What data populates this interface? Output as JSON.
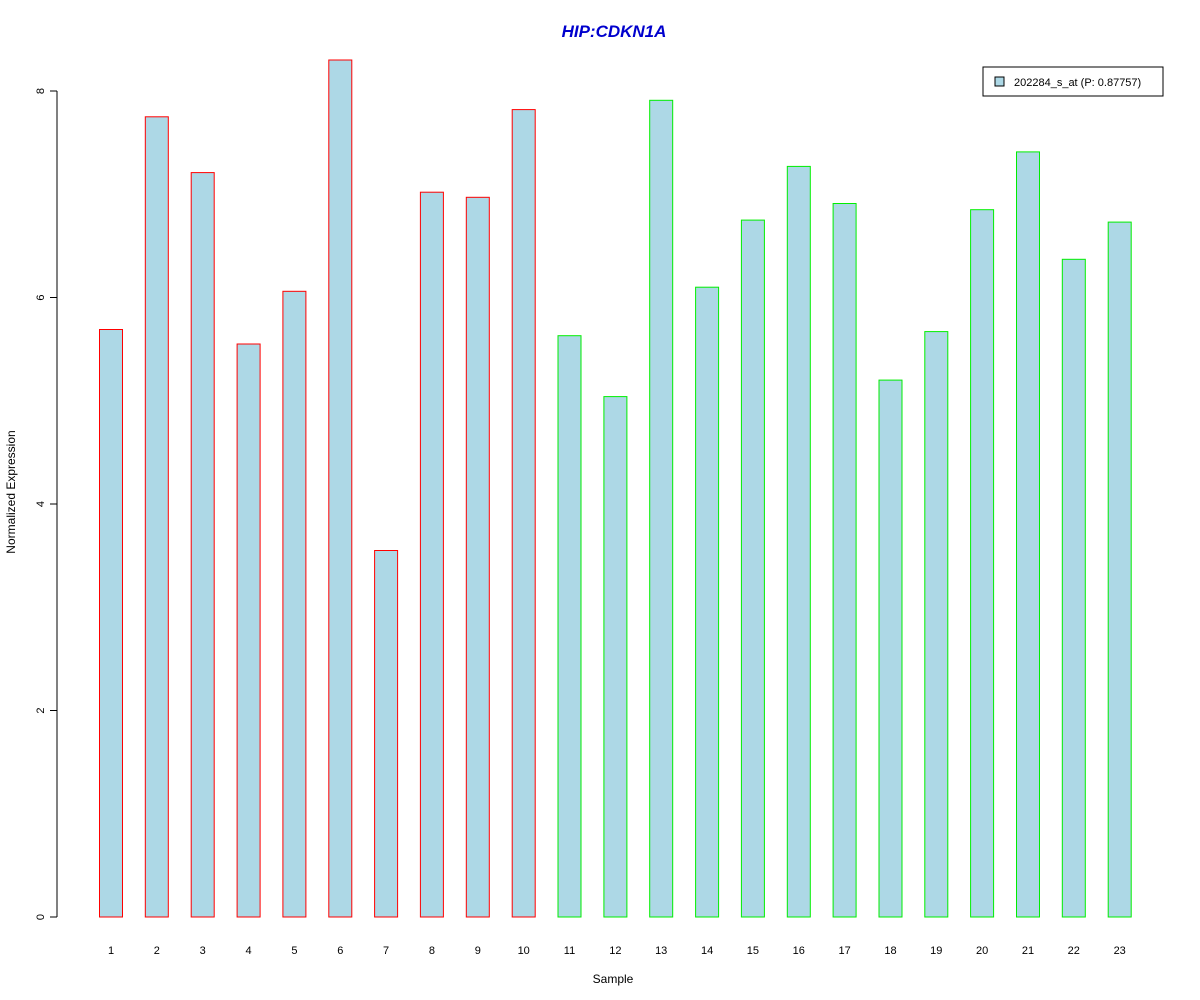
{
  "chart_data": {
    "type": "bar",
    "title": "HIP:CDKN1A",
    "xlabel": "Sample",
    "ylabel": "Normalized Expression",
    "categories": [
      "1",
      "2",
      "3",
      "4",
      "5",
      "6",
      "7",
      "8",
      "9",
      "10",
      "11",
      "12",
      "13",
      "14",
      "15",
      "16",
      "17",
      "18",
      "19",
      "20",
      "21",
      "22",
      "23"
    ],
    "series": [
      {
        "name": "202284_s_at (P: 0.87757)",
        "values": [
          5.69,
          7.75,
          7.21,
          5.55,
          6.06,
          8.3,
          3.55,
          7.02,
          6.97,
          7.82,
          5.63,
          5.04,
          7.91,
          6.1,
          6.75,
          7.27,
          6.91,
          5.2,
          5.67,
          6.85,
          7.41,
          6.37,
          6.73
        ]
      }
    ],
    "bar_border_colors": [
      "#ff0000",
      "#ff0000",
      "#ff0000",
      "#ff0000",
      "#ff0000",
      "#ff0000",
      "#ff0000",
      "#ff0000",
      "#ff0000",
      "#ff0000",
      "#00ee00",
      "#00ee00",
      "#00ee00",
      "#00ee00",
      "#00ee00",
      "#00ee00",
      "#00ee00",
      "#00ee00",
      "#00ee00",
      "#00ee00",
      "#00ee00",
      "#00ee00",
      "#00ee00"
    ],
    "bar_fill_color": "#add8e6",
    "title_color": "#0000cd",
    "yticks": [
      0,
      2,
      4,
      6,
      8
    ],
    "ylim": [
      0,
      8.3
    ],
    "grid": false,
    "legend_position": "top-right"
  }
}
